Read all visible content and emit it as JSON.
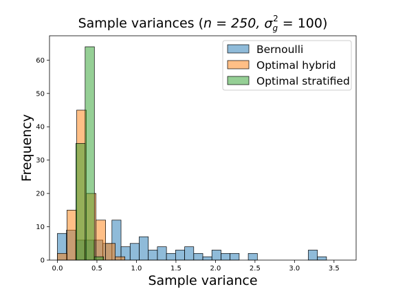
{
  "chart_data": {
    "type": "bar",
    "title": {
      "prefix": "Sample variances (",
      "n_part": "n = 250, ",
      "sigma": "σ",
      "sub": "g",
      "sup": "2",
      "suffix": " = 100)"
    },
    "xlabel": "Sample variance",
    "ylabel": "Frequency",
    "xlim": [
      -0.1,
      3.78
    ],
    "ylim": [
      0,
      67.3
    ],
    "xticks": [
      "0.0",
      "0.5",
      "1.0",
      "1.5",
      "2.0",
      "2.5",
      "3.0",
      "3.5"
    ],
    "yticks": [
      "0",
      "10",
      "20",
      "30",
      "40",
      "50",
      "60"
    ],
    "legend_position": "top-right",
    "series": [
      {
        "name": "Bernoulli",
        "color": "#1f77b4",
        "bin_width": 0.115,
        "bins": [
          [
            0.0,
            8
          ],
          [
            0.115,
            9
          ],
          [
            0.23,
            6
          ],
          [
            0.345,
            6
          ],
          [
            0.46,
            6
          ],
          [
            0.575,
            5
          ],
          [
            0.69,
            12
          ],
          [
            0.805,
            4
          ],
          [
            0.92,
            5
          ],
          [
            1.035,
            7
          ],
          [
            1.15,
            3
          ],
          [
            1.265,
            4
          ],
          [
            1.38,
            2
          ],
          [
            1.495,
            3
          ],
          [
            1.61,
            4
          ],
          [
            1.725,
            2
          ],
          [
            1.84,
            1
          ],
          [
            1.955,
            3
          ],
          [
            2.07,
            2
          ],
          [
            2.185,
            2
          ],
          [
            2.415,
            2
          ],
          [
            3.175,
            3
          ],
          [
            3.29,
            1
          ]
        ]
      },
      {
        "name": "Optimal hybrid",
        "color": "#ff7f0e",
        "bin_width": 0.122,
        "bins": [
          [
            0.0,
            2
          ],
          [
            0.122,
            15
          ],
          [
            0.244,
            45
          ],
          [
            0.366,
            20
          ],
          [
            0.488,
            12
          ],
          [
            0.61,
            5
          ],
          [
            0.732,
            1
          ]
        ]
      },
      {
        "name": "Optimal stratified",
        "color": "#2ca02c",
        "bin_width": 0.117,
        "bins": [
          [
            0.234,
            35
          ],
          [
            0.351,
            64
          ],
          [
            0.468,
            1
          ]
        ]
      }
    ]
  }
}
